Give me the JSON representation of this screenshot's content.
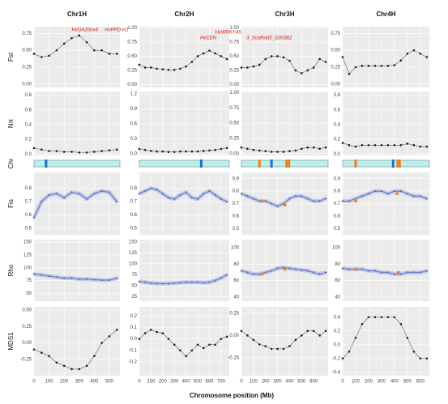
{
  "x_label": "Chromosome position (Mb)",
  "row_labels": [
    "Fst",
    "Nπ",
    "Chr",
    "Fis",
    "Rho",
    "MDS1"
  ],
  "chart_data": [
    {
      "title": "Chr1H",
      "x": [
        0,
        50,
        100,
        150,
        200,
        250,
        300,
        350,
        400,
        450,
        500,
        550
      ],
      "xlim": [
        0,
        570
      ],
      "xticks": [
        0,
        100,
        200,
        300,
        400,
        500
      ],
      "panels": [
        {
          "type": "scatter",
          "color": "#222222",
          "ylim": [
            -0.05,
            0.85
          ],
          "yticks": [
            {
              "value": 0,
              "label": "0.00"
            },
            0.25,
            {
              "value": 0.5,
              "label": "0.50"
            },
            0.75
          ],
          "values": [
            0.45,
            0.4,
            0.42,
            0.5,
            0.6,
            0.68,
            0.72,
            0.62,
            0.5,
            0.5,
            0.45,
            0.45
          ],
          "annotations": [
            {
              "text": "HvGA20ox4",
              "x": 250,
              "y": 0.8
            },
            {
              "text": "HvPPD-H1",
              "x": 470,
              "y": 0.8
            }
          ]
        },
        {
          "type": "scatter",
          "color": "#222222",
          "ylim": [
            -0.02,
            0.85
          ],
          "yticks": [
            {
              "value": 0,
              "label": "0.0"
            },
            0.2,
            0.4,
            0.6,
            0.8
          ],
          "values": [
            0.08,
            0.06,
            0.04,
            0.04,
            0.03,
            0.03,
            0.02,
            0.02,
            0.03,
            0.04,
            0.05,
            0.06
          ]
        },
        {
          "type": "smooth",
          "color": "#222222",
          "line_color": "#6b7fd0",
          "ylim": [
            0.45,
            0.92
          ],
          "yticks": [
            0.5,
            0.6,
            0.7,
            0.8
          ],
          "values": [
            0.58,
            0.7,
            0.75,
            0.76,
            0.73,
            0.77,
            0.76,
            0.72,
            0.76,
            0.78,
            0.77,
            0.7
          ]
        },
        {
          "type": "smooth",
          "color": "#222222",
          "line_color": "#6b7fd0",
          "ylim": [
            35,
            155
          ],
          "yticks": [
            50,
            75,
            100,
            125,
            150
          ],
          "values": [
            88,
            86,
            84,
            82,
            80,
            80,
            78,
            78,
            77,
            76,
            76,
            80
          ]
        },
        {
          "type": "scatter",
          "color": "#222222",
          "ylim": [
            -0.5,
            0.55
          ],
          "yticks": [
            -0.25,
            {
              "value": 0,
              "label": "0.00"
            },
            0.25,
            {
              "value": 0.5,
              "label": "0.50"
            }
          ],
          "values": [
            -0.1,
            -0.15,
            -0.2,
            -0.3,
            -0.35,
            -0.4,
            -0.4,
            -0.35,
            -0.2,
            0,
            0.1,
            0.2
          ]
        }
      ],
      "ideogram": {
        "color": "#b8f3da",
        "markers": [
          {
            "x": 80,
            "color": "#1f6fd1"
          }
        ]
      }
    },
    {
      "title": "Chr2H",
      "x": [
        0,
        50,
        100,
        150,
        200,
        250,
        300,
        350,
        400,
        450,
        500,
        550,
        600,
        650,
        700,
        750
      ],
      "xlim": [
        0,
        770
      ],
      "xticks": [
        0,
        100,
        200,
        300,
        400,
        500,
        600,
        700
      ],
      "panels": [
        {
          "type": "scatter",
          "color": "#222222",
          "ylim": [
            -0.05,
            1.02
          ],
          "yticks": [
            {
              "value": 0,
              "label": "0.00"
            },
            0.25,
            {
              "value": 0.5,
              "label": "0.50"
            },
            0.75,
            {
              "value": 1,
              "label": "1.00"
            }
          ],
          "values": [
            0.35,
            0.3,
            0.3,
            0.28,
            0.27,
            0.26,
            0.26,
            0.28,
            0.32,
            0.4,
            0.5,
            0.55,
            0.6,
            0.55,
            0.5,
            0.45
          ],
          "annotations": [
            {
              "text": "HvCEN",
              "x": 520,
              "y": 0.82
            },
            {
              "text": "HvWRKY45",
              "x": 650,
              "y": 0.92
            }
          ]
        },
        {
          "type": "scatter",
          "color": "#222222",
          "ylim": [
            -0.03,
            1.25
          ],
          "yticks": [
            {
              "value": 0,
              "label": "0.0"
            },
            0.3,
            0.6,
            0.9,
            1.2
          ],
          "values": [
            0.1,
            0.08,
            0.06,
            0.05,
            0.05,
            0.04,
            0.04,
            0.05,
            0.05,
            0.05,
            0.05,
            0.06,
            0.07,
            0.08,
            0.1,
            0.12
          ]
        },
        {
          "type": "smooth",
          "color": "#222222",
          "line_color": "#6b7fd0",
          "ylim": [
            0.45,
            0.92
          ],
          "yticks": [
            0.5,
            0.6,
            0.7,
            0.8
          ],
          "values": [
            0.76,
            0.78,
            0.8,
            0.79,
            0.76,
            0.73,
            0.72,
            0.75,
            0.77,
            0.73,
            0.72,
            0.76,
            0.78,
            0.75,
            0.72,
            0.7
          ]
        },
        {
          "type": "smooth",
          "color": "#222222",
          "line_color": "#6b7fd0",
          "ylim": [
            15,
            155
          ],
          "yticks": [
            25,
            50,
            75,
            100,
            125,
            150
          ],
          "values": [
            60,
            58,
            56,
            55,
            55,
            55,
            56,
            57,
            58,
            58,
            58,
            57,
            58,
            62,
            68,
            75
          ]
        },
        {
          "type": "scatter",
          "color": "#222222",
          "ylim": [
            -0.32,
            0.28
          ],
          "yticks": [
            -0.2,
            -0.1,
            {
              "value": 0,
              "label": "0.0"
            },
            0.1,
            0.2
          ],
          "values": [
            0,
            0.05,
            0.08,
            0.06,
            0.05,
            0,
            -0.05,
            -0.1,
            -0.15,
            -0.1,
            -0.05,
            -0.08,
            -0.05,
            -0.05,
            0,
            0.02
          ]
        }
      ],
      "ideogram": {
        "color": "#b8f3da",
        "markers": [
          {
            "x": 530,
            "color": "#1f6fd1"
          }
        ]
      }
    },
    {
      "title": "Chr3H",
      "x": [
        0,
        50,
        100,
        150,
        200,
        250,
        300,
        350,
        400,
        450,
        500,
        550,
        600,
        650,
        700
      ],
      "xlim": [
        0,
        720
      ],
      "xticks": [
        0,
        100,
        200,
        300,
        400,
        500,
        600
      ],
      "panels": [
        {
          "type": "scatter",
          "color": "#222222",
          "ylim": [
            -0.05,
            1.02
          ],
          "yticks": [
            {
              "value": 0,
              "label": "0.00"
            },
            0.25,
            {
              "value": 0.5,
              "label": "0.50"
            },
            0.75,
            {
              "value": 1,
              "label": "1.00"
            }
          ],
          "values": [
            0.3,
            0.3,
            0.32,
            0.35,
            0.45,
            0.5,
            0.5,
            0.48,
            0.42,
            0.25,
            0.2,
            0.25,
            0.3,
            0.45,
            0.4
          ],
          "annotations": [
            {
              "text": "3_Scaffold3_G00382",
              "x": 40,
              "y": 0.82
            }
          ]
        },
        {
          "type": "scatter",
          "color": "#222222",
          "ylim": [
            -0.03,
            1.02
          ],
          "yticks": [
            {
              "value": 0,
              "label": "0.00"
            },
            0.25,
            {
              "value": 0.5,
              "label": "0.50"
            },
            0.75,
            {
              "value": 1,
              "label": "1.00"
            }
          ],
          "values": [
            0.1,
            0.08,
            0.06,
            0.05,
            0.04,
            0.03,
            0.03,
            0.03,
            0.04,
            0.05,
            0.08,
            0.1,
            0.1,
            0.08,
            0.1
          ]
        },
        {
          "type": "smooth",
          "color": "#222222",
          "line_color": "#6b7fd0",
          "ylim": [
            0.45,
            0.95
          ],
          "yticks": [
            0.5,
            0.6,
            0.7,
            0.8,
            0.9
          ],
          "values": [
            0.78,
            0.76,
            0.74,
            0.72,
            0.72,
            0.7,
            0.68,
            0.7,
            0.74,
            0.76,
            0.76,
            0.74,
            0.72,
            0.72,
            0.74
          ],
          "highlights": [
            {
              "x": 170,
              "y": 0.72
            },
            {
              "x": 360,
              "y": 0.69
            }
          ],
          "highlight_color": "#f07f1f"
        },
        {
          "type": "smooth",
          "color": "#222222",
          "line_color": "#6b7fd0",
          "ylim": [
            35,
            110
          ],
          "yticks": [
            40,
            60,
            80,
            100
          ],
          "values": [
            72,
            70,
            68,
            68,
            70,
            72,
            75,
            76,
            75,
            74,
            73,
            72,
            70,
            68,
            70
          ],
          "highlights": [
            {
              "x": 170,
              "y": 68
            },
            {
              "x": 360,
              "y": 74
            }
          ],
          "highlight_color": "#f07f1f"
        },
        {
          "type": "scatter",
          "color": "#222222",
          "ylim": [
            -0.45,
            0.32
          ],
          "yticks": [
            -0.25,
            {
              "value": 0,
              "label": "0.00"
            },
            0.25
          ],
          "values": [
            0.05,
            0,
            -0.05,
            -0.1,
            -0.12,
            -0.15,
            -0.15,
            -0.15,
            -0.12,
            -0.05,
            0,
            0.05,
            0.05,
            0,
            0.05
          ]
        }
      ],
      "ideogram": {
        "color": "#b8f3da",
        "markers": [
          {
            "x": 150,
            "color": "#f07f1f"
          },
          {
            "x": 250,
            "color": "#1f6fd1"
          },
          {
            "x": 375,
            "color": "#f07f1f"
          },
          {
            "x": 395,
            "color": "#f07f1f"
          }
        ]
      }
    },
    {
      "title": "Chr4H",
      "x": [
        0,
        50,
        100,
        150,
        200,
        250,
        300,
        350,
        400,
        450,
        500,
        550,
        600,
        650
      ],
      "xlim": [
        0,
        670
      ],
      "xticks": [
        0,
        100,
        200,
        300,
        400,
        500,
        600
      ],
      "panels": [
        {
          "type": "scatter",
          "color": "#222222",
          "ylim": [
            -0.05,
            0.85
          ],
          "yticks": [
            {
              "value": 0,
              "label": "0.00"
            },
            0.25,
            {
              "value": 0.5,
              "label": "0.50"
            },
            0.75
          ],
          "values": [
            0.4,
            0.15,
            0.25,
            0.27,
            0.27,
            0.27,
            0.27,
            0.27,
            0.28,
            0.35,
            0.45,
            0.5,
            0.45,
            0.4
          ]
        },
        {
          "type": "scatter",
          "color": "#222222",
          "ylim": [
            -0.02,
            0.85
          ],
          "yticks": [
            {
              "value": 0,
              "label": "0.0"
            },
            0.2,
            0.4,
            0.6,
            0.8
          ],
          "values": [
            0.15,
            0.12,
            0.1,
            0.12,
            0.12,
            0.12,
            0.12,
            0.12,
            0.12,
            0.12,
            0.14,
            0.12,
            0.1,
            0.1
          ]
        },
        {
          "type": "smooth",
          "color": "#222222",
          "line_color": "#6b7fd0",
          "ylim": [
            0.45,
            0.95
          ],
          "yticks": [
            0.5,
            0.6,
            0.7,
            0.8,
            0.9
          ],
          "values": [
            0.72,
            0.72,
            0.74,
            0.76,
            0.78,
            0.8,
            0.8,
            0.78,
            0.8,
            0.8,
            0.78,
            0.76,
            0.76,
            0.74
          ],
          "highlights": [
            {
              "x": 100,
              "y": 0.72
            },
            {
              "x": 420,
              "y": 0.78
            }
          ],
          "highlight_color": "#f07f1f"
        },
        {
          "type": "smooth",
          "color": "#222222",
          "line_color": "#6b7fd0",
          "ylim": [
            35,
            110
          ],
          "yticks": [
            40,
            60,
            80,
            100
          ],
          "values": [
            75,
            74,
            74,
            74,
            72,
            72,
            70,
            70,
            68,
            68,
            70,
            70,
            70,
            72
          ],
          "highlights": [
            {
              "x": 100,
              "y": 74
            },
            {
              "x": 430,
              "y": 70
            }
          ],
          "highlight_color": "#f07f1f"
        },
        {
          "type": "scatter",
          "color": "#222222",
          "ylim": [
            -0.45,
            0.55
          ],
          "yticks": [
            -0.4,
            -0.2,
            {
              "value": 0,
              "label": "0.0"
            },
            0.2,
            0.4
          ],
          "values": [
            -0.2,
            -0.1,
            0.1,
            0.3,
            0.4,
            0.4,
            0.4,
            0.4,
            0.4,
            0.3,
            0.1,
            -0.1,
            -0.2,
            -0.2
          ]
        }
      ],
      "ideogram": {
        "color": "#b8f3da",
        "markers": [
          {
            "x": 100,
            "color": "#f07f1f"
          },
          {
            "x": 390,
            "color": "#1f6fd1"
          },
          {
            "x": 425,
            "color": "#f07f1f"
          },
          {
            "x": 440,
            "color": "#f07f1f"
          }
        ]
      }
    }
  ]
}
